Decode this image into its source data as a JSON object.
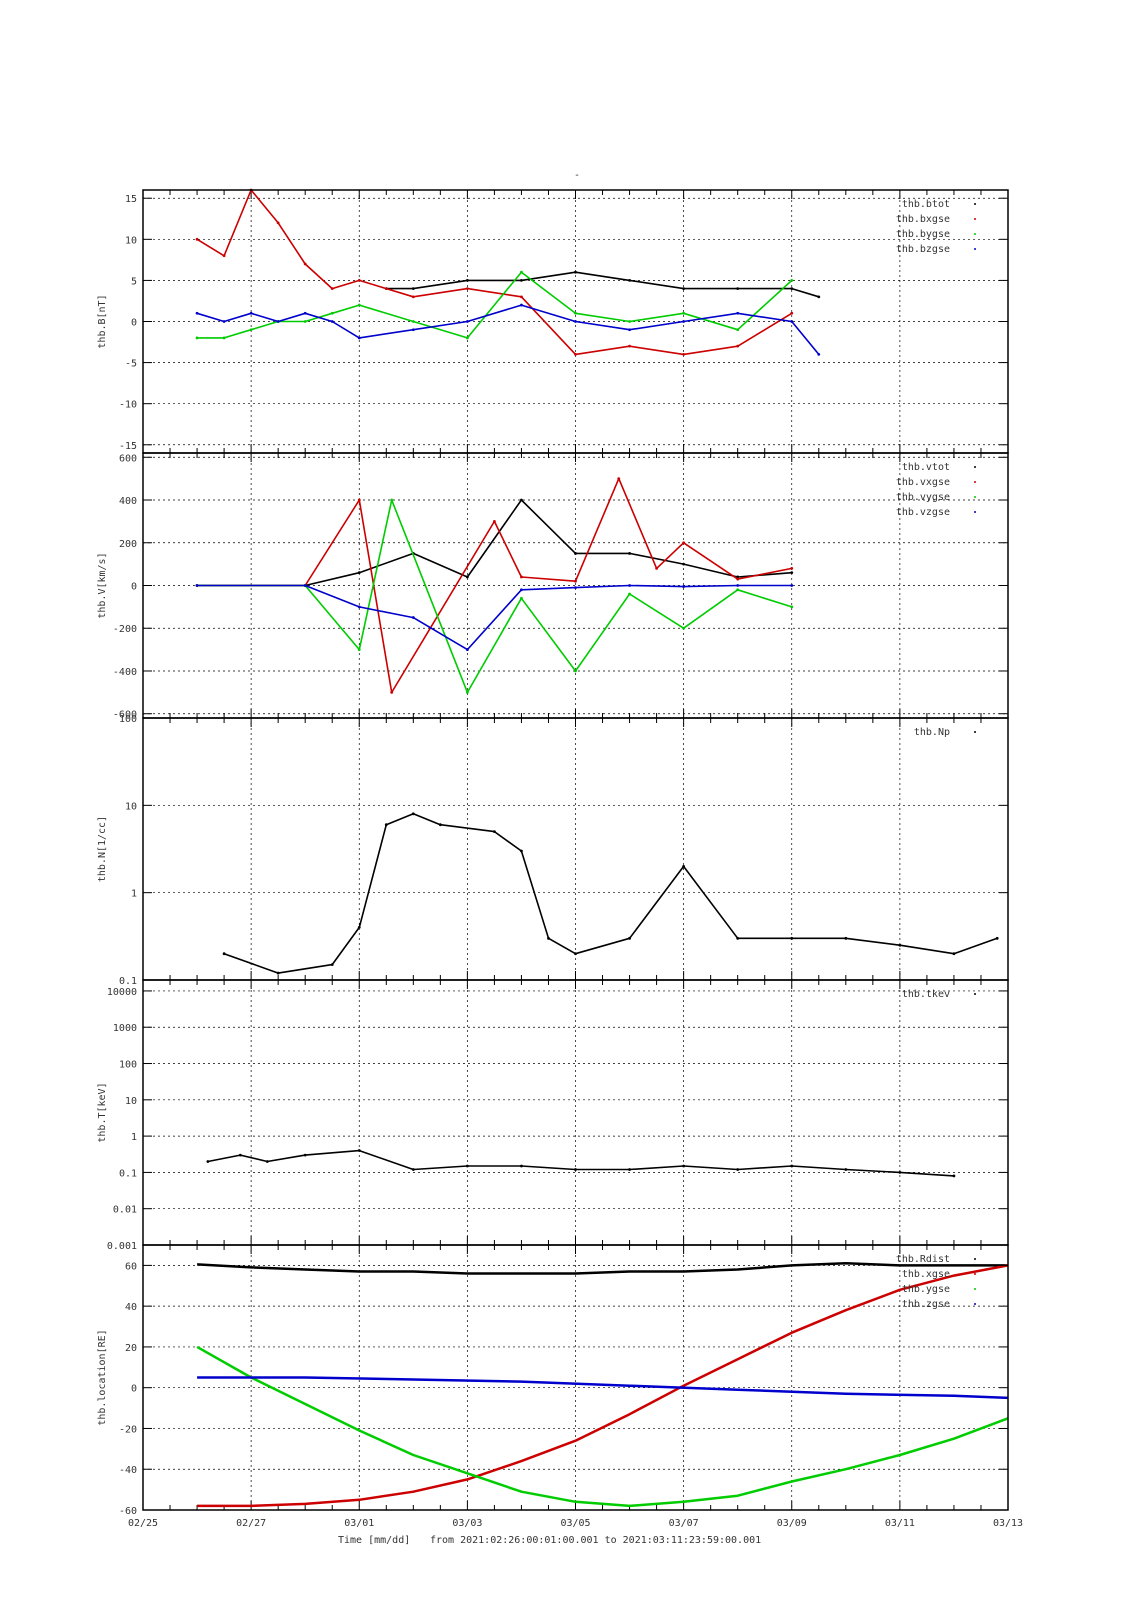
{
  "title": "-",
  "x_axis": {
    "label": "Time [mm/dd]",
    "range_text": "from 2021:02:26:00:01:00.001  to  2021:03:11:23:59:00.001",
    "range_days": [
      -1,
      15
    ],
    "tick_days": [
      -1,
      1,
      3,
      5,
      7,
      9,
      11,
      13,
      15
    ],
    "tick_labels": [
      "02/25",
      "02/27",
      "03/01",
      "03/03",
      "03/05",
      "03/07",
      "03/09",
      "03/11",
      "03/13"
    ],
    "minor_step_days": 0.5
  },
  "colors": {
    "black": "#000000",
    "red": "#cc0000",
    "green": "#00cc00",
    "blue": "#0000cc",
    "grid": "#000000"
  },
  "chart_data": [
    {
      "type": "scatter",
      "ylabel": "thb.B[nT]",
      "ylim": [
        -16,
        16
      ],
      "yticks": [
        -15,
        -10,
        -5,
        0,
        5,
        10,
        15
      ],
      "ytick_labels": [
        "-15",
        "-10",
        "-5",
        "0",
        "5",
        "10",
        "15"
      ],
      "legend_position": "top-right",
      "series": [
        {
          "name": "thb.btot",
          "color": "black",
          "points": [
            [
              3.5,
              4
            ],
            [
              4,
              4
            ],
            [
              5,
              5
            ],
            [
              6,
              5
            ],
            [
              7,
              6
            ],
            [
              8,
              5
            ],
            [
              9,
              4
            ],
            [
              10,
              4
            ],
            [
              11,
              4
            ],
            [
              11.5,
              3
            ]
          ]
        },
        {
          "name": "thb.bxgse",
          "color": "red",
          "points": [
            [
              0,
              10
            ],
            [
              0.5,
              8
            ],
            [
              1,
              16
            ],
            [
              1.5,
              12
            ],
            [
              2,
              7
            ],
            [
              2.5,
              4
            ],
            [
              3,
              5
            ],
            [
              3.5,
              4
            ],
            [
              4,
              3
            ],
            [
              5,
              4
            ],
            [
              6,
              3
            ],
            [
              7,
              -4
            ],
            [
              8,
              -3
            ],
            [
              9,
              -4
            ],
            [
              10,
              -3
            ],
            [
              11,
              1
            ]
          ]
        },
        {
          "name": "thb.bygse",
          "color": "green",
          "points": [
            [
              0,
              -2
            ],
            [
              0.5,
              -2
            ],
            [
              1,
              -1
            ],
            [
              1.5,
              0
            ],
            [
              2,
              0
            ],
            [
              2.5,
              1
            ],
            [
              3,
              2
            ],
            [
              4,
              0
            ],
            [
              5,
              -2
            ],
            [
              6,
              6
            ],
            [
              7,
              1
            ],
            [
              8,
              0
            ],
            [
              9,
              1
            ],
            [
              10,
              -1
            ],
            [
              11,
              5
            ]
          ]
        },
        {
          "name": "thb.bzgse",
          "color": "blue",
          "points": [
            [
              0,
              1
            ],
            [
              0.5,
              0
            ],
            [
              1,
              1
            ],
            [
              1.5,
              0
            ],
            [
              2,
              1
            ],
            [
              2.5,
              0
            ],
            [
              3,
              -2
            ],
            [
              4,
              -1
            ],
            [
              5,
              0
            ],
            [
              6,
              2
            ],
            [
              7,
              0
            ],
            [
              8,
              -1
            ],
            [
              9,
              0
            ],
            [
              10,
              1
            ],
            [
              11,
              0
            ],
            [
              11.5,
              -4
            ]
          ]
        }
      ]
    },
    {
      "type": "scatter",
      "ylabel": "thb.V[km/s]",
      "ylim": [
        -620,
        620
      ],
      "yticks": [
        -600,
        -400,
        -200,
        0,
        200,
        400,
        600
      ],
      "ytick_labels": [
        "-600",
        "-400",
        "-200",
        "0",
        "200",
        "400",
        "600"
      ],
      "legend_position": "top-right",
      "series": [
        {
          "name": "thb.vtot",
          "color": "black",
          "points": [
            [
              0,
              0
            ],
            [
              2,
              0
            ],
            [
              3,
              60
            ],
            [
              4,
              150
            ],
            [
              5,
              40
            ],
            [
              6,
              400
            ],
            [
              7,
              150
            ],
            [
              8,
              150
            ],
            [
              9,
              100
            ],
            [
              10,
              40
            ],
            [
              11,
              60
            ]
          ]
        },
        {
          "name": "thb.vxgse",
          "color": "red",
          "points": [
            [
              0,
              0
            ],
            [
              2,
              0
            ],
            [
              3,
              400
            ],
            [
              3.6,
              -500
            ],
            [
              5.5,
              300
            ],
            [
              6,
              40
            ],
            [
              7,
              20
            ],
            [
              7.8,
              500
            ],
            [
              8.5,
              80
            ],
            [
              9,
              200
            ],
            [
              10,
              30
            ],
            [
              11,
              80
            ]
          ]
        },
        {
          "name": "thb.vygse",
          "color": "green",
          "points": [
            [
              0,
              0
            ],
            [
              2,
              0
            ],
            [
              3,
              -300
            ],
            [
              3.6,
              400
            ],
            [
              5,
              -500
            ],
            [
              6,
              -60
            ],
            [
              7,
              -400
            ],
            [
              8,
              -40
            ],
            [
              9,
              -200
            ],
            [
              10,
              -20
            ],
            [
              11,
              -100
            ]
          ]
        },
        {
          "name": "thb.vzgse",
          "color": "blue",
          "points": [
            [
              0,
              0
            ],
            [
              2,
              0
            ],
            [
              3,
              -100
            ],
            [
              4,
              -150
            ],
            [
              5,
              -300
            ],
            [
              6,
              -20
            ],
            [
              7,
              -10
            ],
            [
              8,
              0
            ],
            [
              9,
              -5
            ],
            [
              10,
              0
            ],
            [
              11,
              0
            ]
          ]
        }
      ]
    },
    {
      "type": "scatter",
      "ylabel": "thb.N[1/cc]",
      "yscale": "log",
      "ylim": [
        0.1,
        100
      ],
      "yticks": [
        0.1,
        1,
        10,
        100
      ],
      "ytick_labels": [
        "0.1",
        "1",
        "10",
        "100"
      ],
      "legend_position": "top-right",
      "series": [
        {
          "name": "thb.Np",
          "color": "black",
          "points": [
            [
              0.5,
              0.2
            ],
            [
              1.5,
              0.12
            ],
            [
              2.5,
              0.15
            ],
            [
              3,
              0.4
            ],
            [
              3.5,
              6
            ],
            [
              4,
              8
            ],
            [
              4.5,
              6
            ],
            [
              5.5,
              5
            ],
            [
              6,
              3
            ],
            [
              6.5,
              0.3
            ],
            [
              7,
              0.2
            ],
            [
              8,
              0.3
            ],
            [
              9,
              2
            ],
            [
              10,
              0.3
            ],
            [
              11,
              0.3
            ],
            [
              12,
              0.3
            ],
            [
              13,
              0.25
            ],
            [
              14,
              0.2
            ],
            [
              14.8,
              0.3
            ]
          ]
        }
      ]
    },
    {
      "type": "scatter",
      "ylabel": "thb.T[keV]",
      "yscale": "log",
      "ylim": [
        0.001,
        20000
      ],
      "yticks": [
        0.001,
        0.01,
        0.1,
        1,
        10,
        100,
        1000,
        10000
      ],
      "ytick_labels": [
        "0.001",
        "0.01",
        "0.1",
        "1",
        "10",
        "100",
        "1000",
        "10000"
      ],
      "legend_position": "top-right",
      "series": [
        {
          "name": "thb.tkev",
          "color": "black",
          "points": [
            [
              0.2,
              0.2
            ],
            [
              0.8,
              0.3
            ],
            [
              1.3,
              0.2
            ],
            [
              2,
              0.3
            ],
            [
              3,
              0.4
            ],
            [
              4,
              0.12
            ],
            [
              5,
              0.15
            ],
            [
              6,
              0.15
            ],
            [
              7,
              0.12
            ],
            [
              8,
              0.12
            ],
            [
              9,
              0.15
            ],
            [
              10,
              0.12
            ],
            [
              11,
              0.15
            ],
            [
              12,
              0.12
            ],
            [
              13,
              0.1
            ],
            [
              14,
              0.08
            ]
          ]
        }
      ]
    },
    {
      "type": "line",
      "ylabel": "thb.location[RE]",
      "ylim": [
        -60,
        70
      ],
      "yticks": [
        -60,
        -40,
        -20,
        0,
        20,
        40,
        60
      ],
      "ytick_labels": [
        "-60",
        "-40",
        "-20",
        "0",
        "20",
        "40",
        "60"
      ],
      "legend_position": "top-right",
      "series": [
        {
          "name": "thb.Rdist",
          "color": "black",
          "points": [
            [
              0,
              60.5
            ],
            [
              1,
              59
            ],
            [
              2,
              58
            ],
            [
              3,
              57
            ],
            [
              4,
              57
            ],
            [
              5,
              56
            ],
            [
              6,
              56
            ],
            [
              7,
              56
            ],
            [
              8,
              57
            ],
            [
              9,
              57
            ],
            [
              10,
              58
            ],
            [
              11,
              60
            ],
            [
              12,
              61
            ],
            [
              13,
              60
            ],
            [
              14,
              60
            ],
            [
              15,
              60
            ]
          ]
        },
        {
          "name": "thb.xgse",
          "color": "red",
          "points": [
            [
              0,
              -58
            ],
            [
              1,
              -58
            ],
            [
              2,
              -57
            ],
            [
              3,
              -55
            ],
            [
              4,
              -51
            ],
            [
              5,
              -45
            ],
            [
              6,
              -36
            ],
            [
              7,
              -26
            ],
            [
              8,
              -13
            ],
            [
              9,
              1
            ],
            [
              10,
              14
            ],
            [
              11,
              27
            ],
            [
              12,
              38
            ],
            [
              13,
              48
            ],
            [
              14,
              55
            ],
            [
              15,
              60
            ]
          ]
        },
        {
          "name": "thb.ygse",
          "color": "green",
          "points": [
            [
              0,
              20
            ],
            [
              1,
              5
            ],
            [
              2,
              -8
            ],
            [
              3,
              -21
            ],
            [
              4,
              -33
            ],
            [
              5,
              -42
            ],
            [
              6,
              -51
            ],
            [
              7,
              -56
            ],
            [
              8,
              -58
            ],
            [
              9,
              -56
            ],
            [
              10,
              -53
            ],
            [
              11,
              -46
            ],
            [
              12,
              -40
            ],
            [
              13,
              -33
            ],
            [
              14,
              -25
            ],
            [
              15,
              -15
            ]
          ]
        },
        {
          "name": "thb.zgse",
          "color": "blue",
          "points": [
            [
              0,
              5
            ],
            [
              2,
              5
            ],
            [
              4,
              4
            ],
            [
              6,
              3
            ],
            [
              8,
              1
            ],
            [
              10,
              -1
            ],
            [
              12,
              -3
            ],
            [
              14,
              -4
            ],
            [
              15,
              -5
            ]
          ]
        }
      ]
    }
  ]
}
